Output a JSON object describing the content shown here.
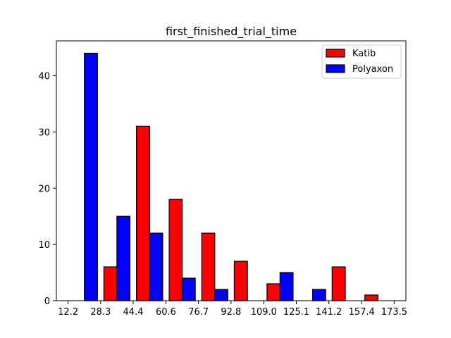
{
  "chart_data": {
    "type": "bar",
    "title": "first_finished_trial_time",
    "xlabel": "",
    "ylabel": "",
    "x_ticks": [
      "12.2",
      "28.3",
      "44.4",
      "60.6",
      "76.7",
      "92.8",
      "109.0",
      "125.1",
      "141.2",
      "157.4",
      "173.5"
    ],
    "y_ticks": [
      0,
      10,
      20,
      30,
      40
    ],
    "ylim": [
      0,
      46.2
    ],
    "xlim": [
      6.4,
      179.3
    ],
    "bin_edges": [
      12.2,
      28.3,
      44.4,
      60.6,
      76.7,
      92.8,
      109.0,
      125.1,
      141.2,
      157.4,
      173.5
    ],
    "series": [
      {
        "name": "Katib",
        "color": "#ff0000",
        "values": [
          0,
          6,
          31,
          18,
          12,
          7,
          3,
          0,
          6,
          1
        ]
      },
      {
        "name": "Polyaxon",
        "color": "#0000ff",
        "values": [
          44,
          15,
          12,
          4,
          2,
          0,
          5,
          2,
          0,
          0
        ]
      }
    ],
    "legend_position": "top-right",
    "grid": false
  }
}
